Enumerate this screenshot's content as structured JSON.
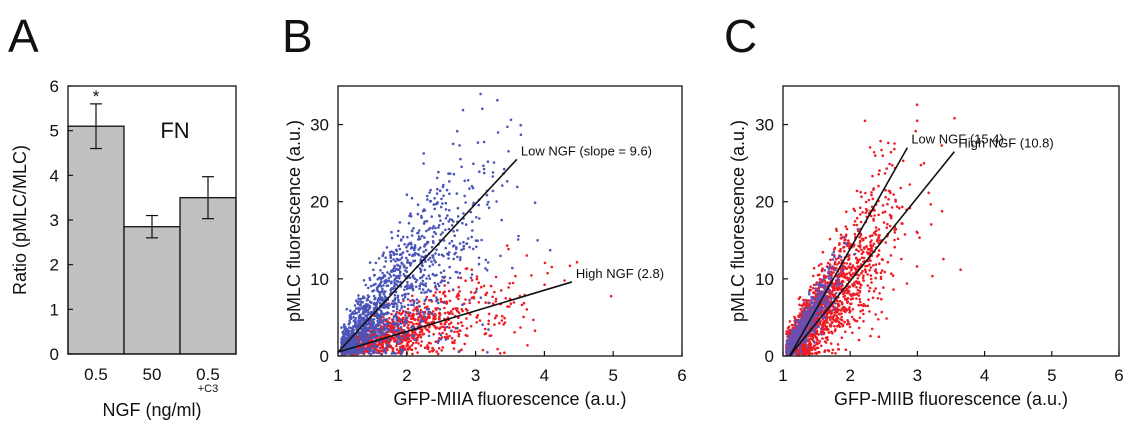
{
  "colors": {
    "bar": "#c0c0c0",
    "blue": "#4b55b8",
    "red": "#ee1c25",
    "mix": "#6a4fb0"
  },
  "chart_data": [
    {
      "type": "bar",
      "panel": "A",
      "categories": [
        "0.5",
        "50",
        "0.5"
      ],
      "category_sublabels": [
        "",
        "",
        "+C3"
      ],
      "values": [
        5.1,
        2.85,
        3.5
      ],
      "errors": [
        0.5,
        0.25,
        0.47
      ],
      "significance": [
        "*",
        "",
        ""
      ],
      "annotation": "FN",
      "xlabel": "NGF (ng/ml)",
      "ylabel": "Ratio (pMLC/MLC)",
      "ylim": [
        0,
        6
      ],
      "yticks": [
        0,
        1,
        2,
        3,
        4,
        5,
        6
      ]
    },
    {
      "type": "scatter",
      "panel": "B",
      "xlabel": "GFP-MIIA fluorescence (a.u.)",
      "ylabel": "pMLC fluorescence (a.u.)",
      "xlim": [
        1,
        6
      ],
      "ylim": [
        0,
        35
      ],
      "xticks": [
        1,
        2,
        3,
        4,
        5,
        6
      ],
      "yticks": [
        0,
        10,
        20,
        30
      ],
      "fits": [
        {
          "label": "Low NGF (slope = 9.6)",
          "x": [
            1,
            3.6
          ],
          "y": [
            0.5,
            25.5
          ]
        },
        {
          "label": "High NGF (2.8)",
          "x": [
            1,
            4.4
          ],
          "y": [
            0.5,
            9.6
          ]
        }
      ]
    },
    {
      "type": "scatter",
      "panel": "C",
      "xlabel": "GFP-MIIB fluorescence (a.u.)",
      "ylabel": "pMLC fluorescence (a.u.)",
      "xlim": [
        1,
        6
      ],
      "ylim": [
        0,
        35
      ],
      "xticks": [
        1,
        2,
        3,
        4,
        5,
        6
      ],
      "yticks": [
        0,
        10,
        20,
        30
      ],
      "fits": [
        {
          "label": "Low NGF (15.4)",
          "x": [
            1.1,
            2.85
          ],
          "y": [
            0,
            27
          ]
        },
        {
          "label": "High NGF (10.8)",
          "x": [
            1.1,
            3.55
          ],
          "y": [
            0,
            26.5
          ]
        }
      ]
    }
  ],
  "panels": {
    "a": "A",
    "b": "B",
    "c": "C"
  }
}
